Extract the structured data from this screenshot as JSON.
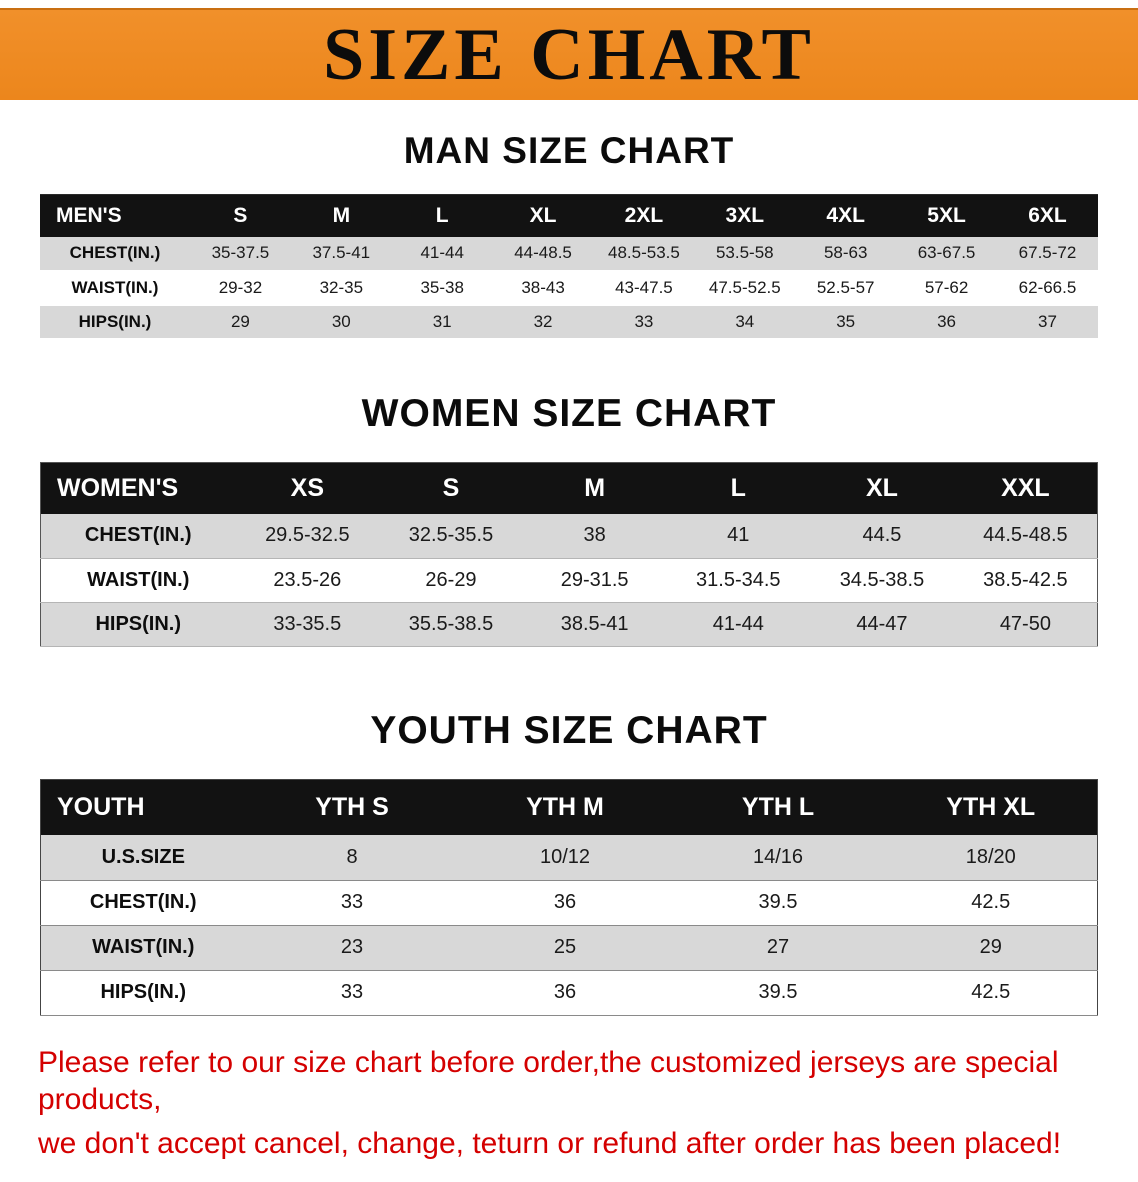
{
  "banner": {
    "title": "SIZE CHART",
    "background_color": "#ec861c",
    "text_color": "#0c0c0c"
  },
  "sections": [
    {
      "id": "men",
      "heading": "MAN SIZE CHART",
      "table": {
        "header": [
          "MEN'S",
          "S",
          "M",
          "L",
          "XL",
          "2XL",
          "3XL",
          "4XL",
          "5XL",
          "6XL"
        ],
        "rows": [
          [
            "CHEST(IN.)",
            "35-37.5",
            "37.5-41",
            "41-44",
            "44-48.5",
            "48.5-53.5",
            "53.5-58",
            "58-63",
            "63-67.5",
            "67.5-72"
          ],
          [
            "WAIST(IN.)",
            "29-32",
            "32-35",
            "35-38",
            "38-43",
            "43-47.5",
            "47.5-52.5",
            "52.5-57",
            "57-62",
            "62-66.5"
          ],
          [
            "HIPS(IN.)",
            "29",
            "30",
            "31",
            "32",
            "33",
            "34",
            "35",
            "36",
            "37"
          ]
        ]
      }
    },
    {
      "id": "women",
      "heading": "WOMEN SIZE CHART",
      "table": {
        "header": [
          "WOMEN'S",
          "XS",
          "S",
          "M",
          "L",
          "XL",
          "XXL"
        ],
        "rows": [
          [
            "CHEST(IN.)",
            "29.5-32.5",
            "32.5-35.5",
            "38",
            "41",
            "44.5",
            "44.5-48.5"
          ],
          [
            "WAIST(IN.)",
            "23.5-26",
            "26-29",
            "29-31.5",
            "31.5-34.5",
            "34.5-38.5",
            "38.5-42.5"
          ],
          [
            "HIPS(IN.)",
            "33-35.5",
            "35.5-38.5",
            "38.5-41",
            "41-44",
            "44-47",
            "47-50"
          ]
        ]
      }
    },
    {
      "id": "youth",
      "heading": "YOUTH SIZE CHART",
      "table": {
        "header": [
          "YOUTH",
          "YTH S",
          "YTH M",
          "YTH L",
          "YTH XL"
        ],
        "rows": [
          [
            "U.S.SIZE",
            "8",
            "10/12",
            "14/16",
            "18/20"
          ],
          [
            "CHEST(IN.)",
            "33",
            "36",
            "39.5",
            "42.5"
          ],
          [
            "WAIST(IN.)",
            "23",
            "25",
            "27",
            "29"
          ],
          [
            "HIPS(IN.)",
            "33",
            "36",
            "39.5",
            "42.5"
          ]
        ]
      }
    }
  ],
  "disclaimer": {
    "color": "#d40000",
    "line1": "Please refer to our size chart before order,the customized jerseys are special products,",
    "line2": "we don't accept cancel, change, teturn or refund after order has been placed!"
  }
}
